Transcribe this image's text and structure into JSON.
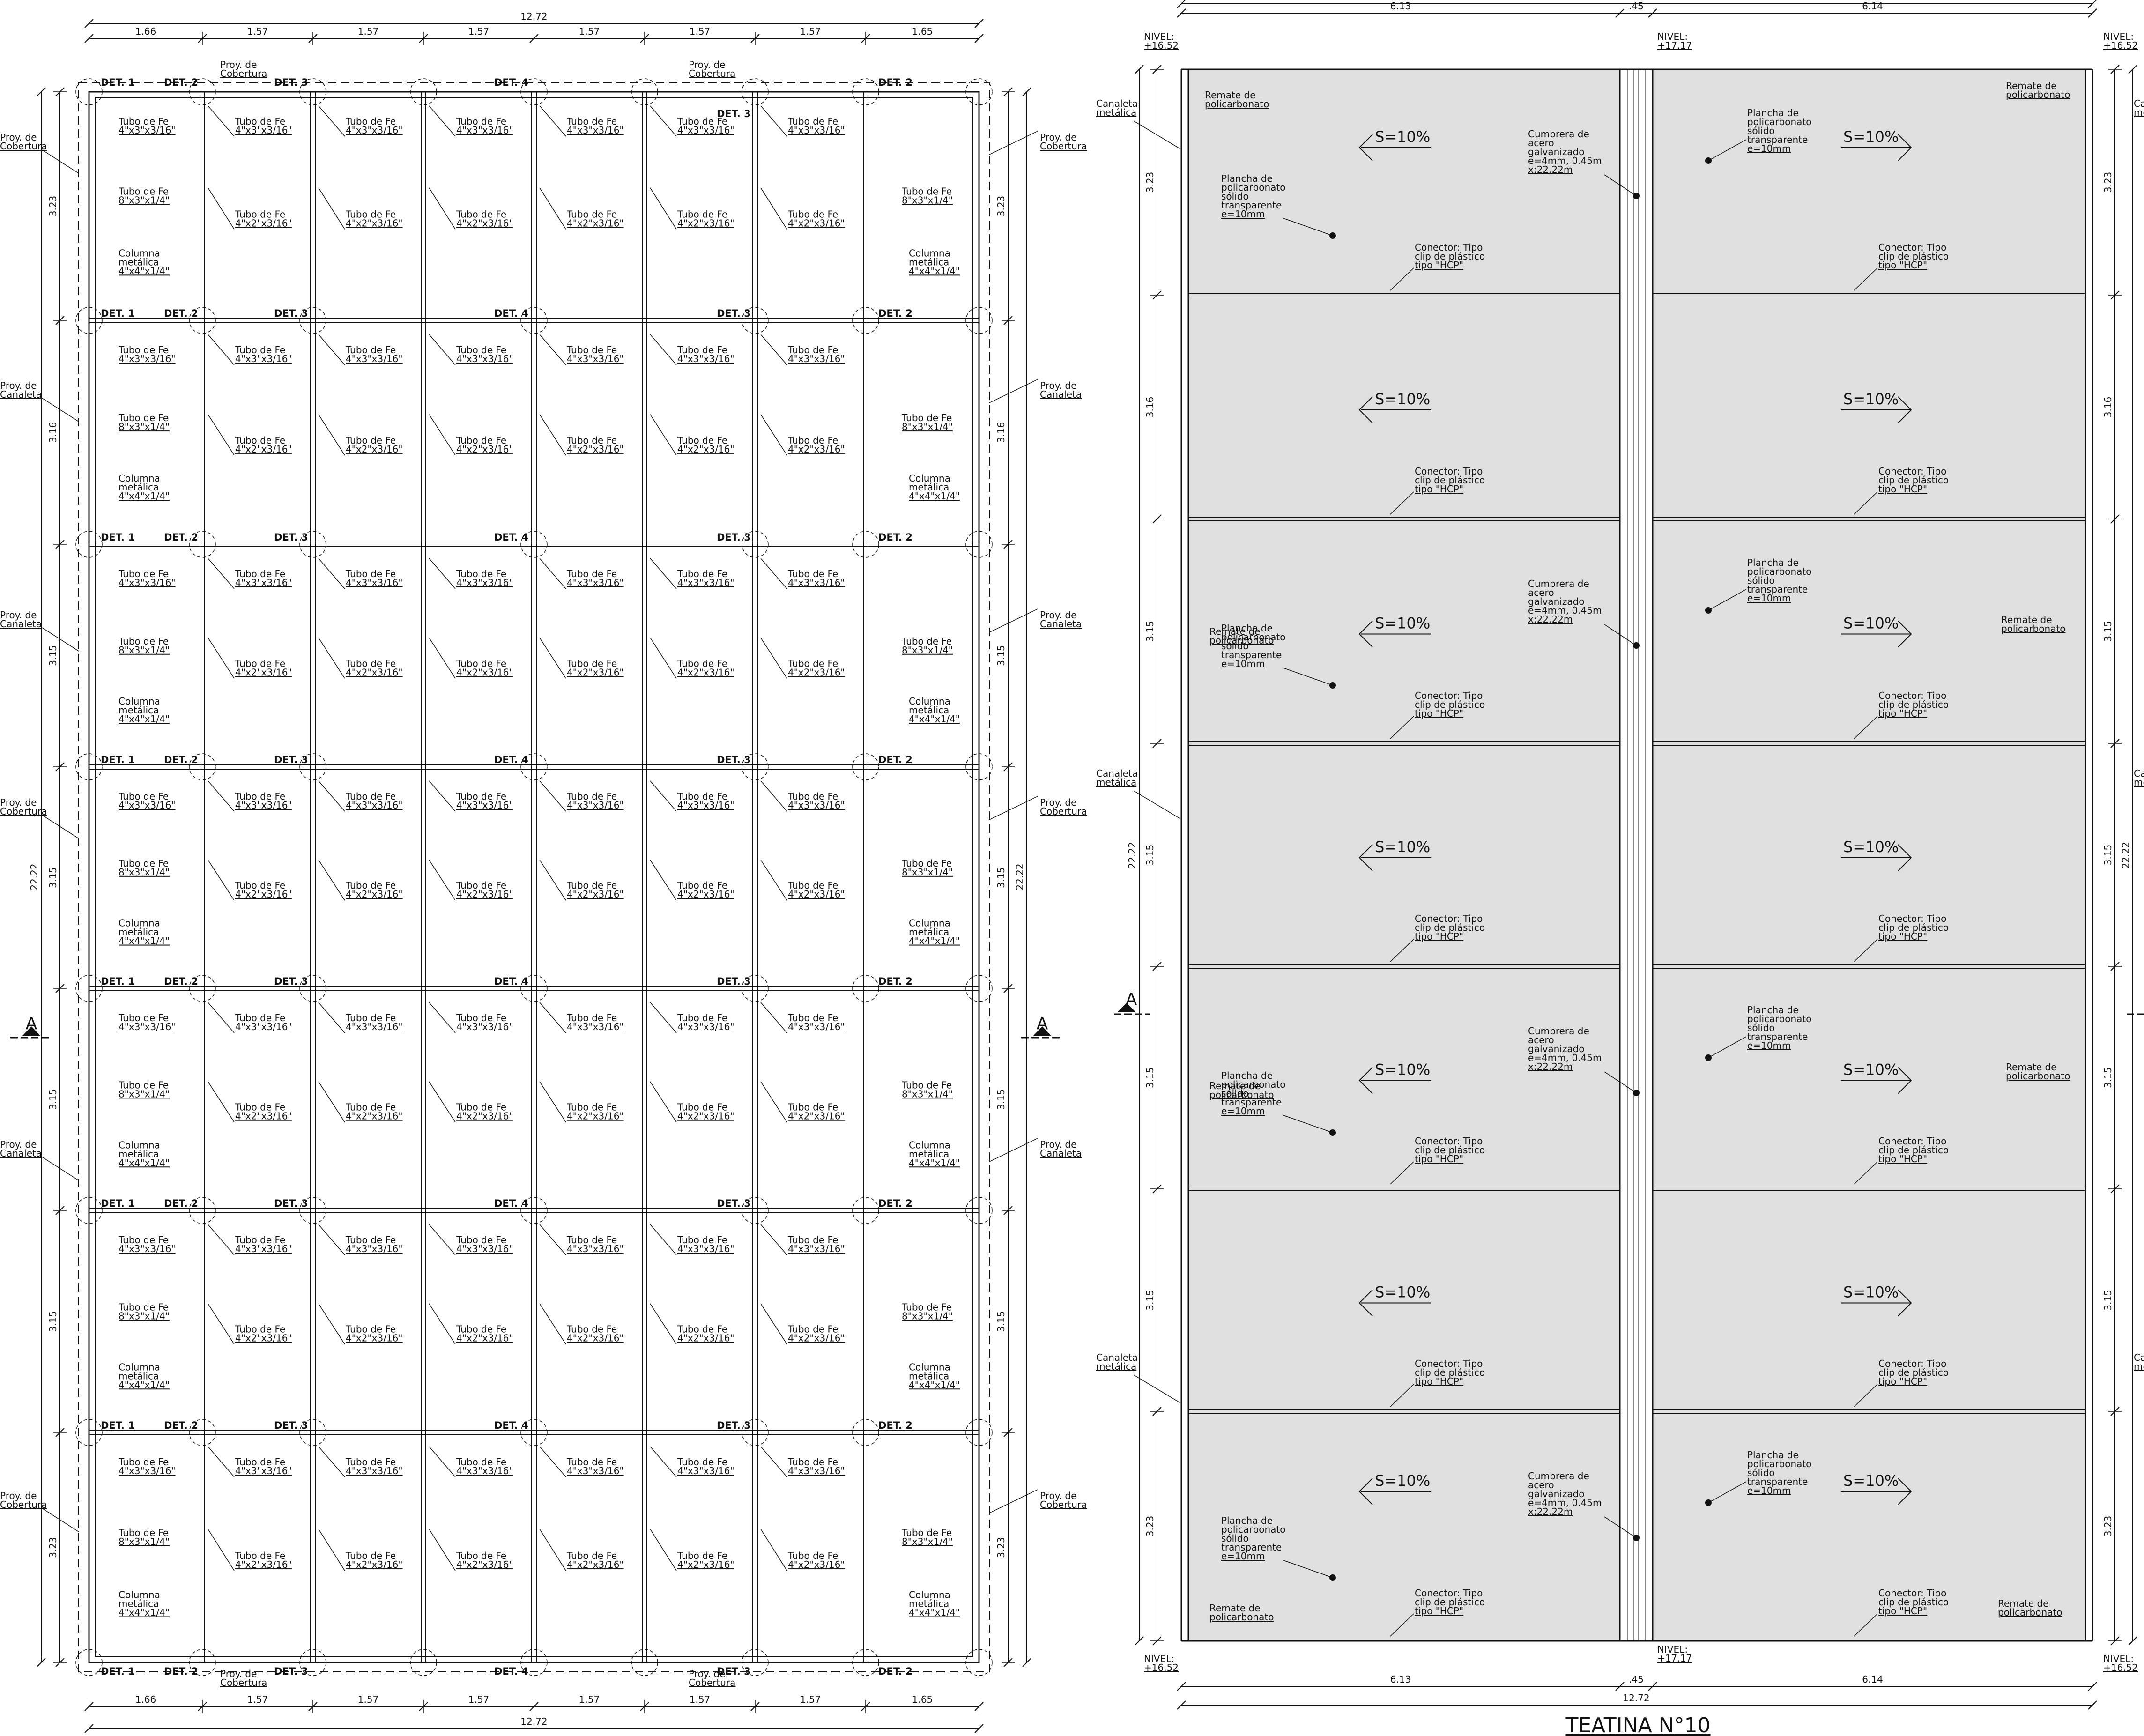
{
  "left_plan": {
    "total_width": "12.72",
    "total_height": "22.22",
    "col_widths": [
      "1.66",
      "1.57",
      "1.57",
      "1.57",
      "1.57",
      "1.57",
      "1.57",
      "1.65"
    ],
    "row_heights": [
      "3.23",
      "3.16",
      "3.15",
      "3.15",
      "3.15",
      "3.15",
      "3.23"
    ],
    "labels": {
      "det1": "DET. 1",
      "det2": "DET. 2",
      "det3": "DET. 3",
      "det4": "DET. 4",
      "tubo_a": [
        "Tubo de Fe",
        "4\"x3\"x3/16\""
      ],
      "tubo_b": [
        "Tubo de Fe",
        "4\"x2\"x3/16\""
      ],
      "tubo_c": [
        "Tubo de Fe",
        "8\"x3\"x1/4\""
      ],
      "columna": [
        "Columna",
        "metálica",
        "4\"x4\"x1/4\""
      ],
      "proy_cob": [
        "Proy. de",
        "Cobertura"
      ],
      "proy_can": [
        "Proy. de",
        "Canaleta"
      ]
    }
  },
  "right_plan": {
    "title": "TEATINA N°10",
    "width_left": "6.13",
    "width_mid": ".45",
    "width_right": "6.14",
    "total_width": "12.72",
    "total_height": "22.22",
    "row_heights": [
      "3.23",
      "3.16",
      "3.15",
      "3.15",
      "3.15",
      "3.15",
      "3.23"
    ],
    "nivel_side": [
      "NIVEL:",
      "+16.52"
    ],
    "nivel_ridge": [
      "NIVEL:",
      "+17.17"
    ],
    "slope": "S=10%",
    "labels": {
      "canaleta": [
        "Canaleta",
        "metálica"
      ],
      "remate": [
        "Remate de",
        "policarbonato"
      ],
      "plancha": [
        "Plancha de",
        "policarbonato",
        "sólido",
        "transparente",
        "e=10mm"
      ],
      "cumbrera": [
        "Cumbrera de",
        "acero",
        "galvanizado",
        "e=4mm, 0.45m",
        "x:22.22m"
      ],
      "conector": [
        "Conector: Tipo",
        "clip de plástico",
        "tipo \"HCP\""
      ]
    }
  },
  "section_mark": "A",
  "colors": {
    "line": "#111111",
    "panel_fill": "#e0e0e0"
  }
}
